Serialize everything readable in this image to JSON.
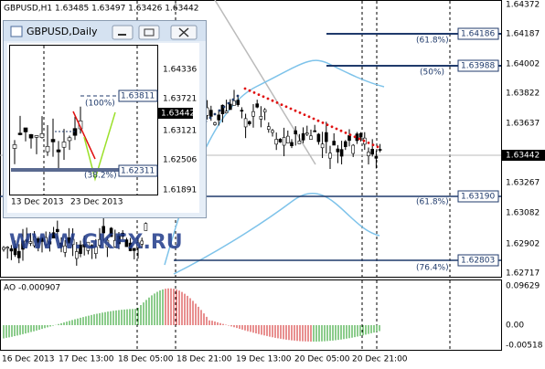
{
  "main": {
    "header": "GBPUSD,H1  1.63485 1.63497 1.63426 1.63442",
    "price_labels": [
      "1.64372",
      "1.64187",
      "1.64002",
      "1.63822",
      "1.63637",
      "1.63442",
      "1.63267",
      "1.63082",
      "1.62902",
      "1.62717"
    ],
    "levels": [
      {
        "label": "(61.8%)",
        "price": "1.64186"
      },
      {
        "label": "(50%)",
        "price": "1.63988"
      },
      {
        "label": "(61.8%)",
        "price": "1.63190"
      },
      {
        "label": "(76.4%)",
        "price": "1.62803"
      }
    ],
    "watermark": "WWW.GKFX.RU",
    "indicator": {
      "label": "AO -0.000907",
      "scale": [
        "0.09629",
        "0.00",
        "-0.00518"
      ]
    },
    "dates": [
      "16 Dec 2013",
      "17 Dec 13:00",
      "18 Dec 05:00",
      "18 Dec 21:00",
      "19 Dec 13:00",
      "20 Dec 05:00",
      "20 Dec 21:00"
    ]
  },
  "inset": {
    "title": "GBPUSD,Daily",
    "price_labels": [
      "1.64336",
      "1.63721",
      "1.63121",
      "1.62506",
      "1.61891"
    ],
    "levels": [
      {
        "label": "(100%)",
        "price": "1.63811"
      },
      {
        "label": "(38.2%)",
        "price": "1.62311"
      }
    ],
    "current": "1.63442",
    "dates": [
      "13 Dec 2013",
      "23 Dec 2013"
    ]
  }
}
